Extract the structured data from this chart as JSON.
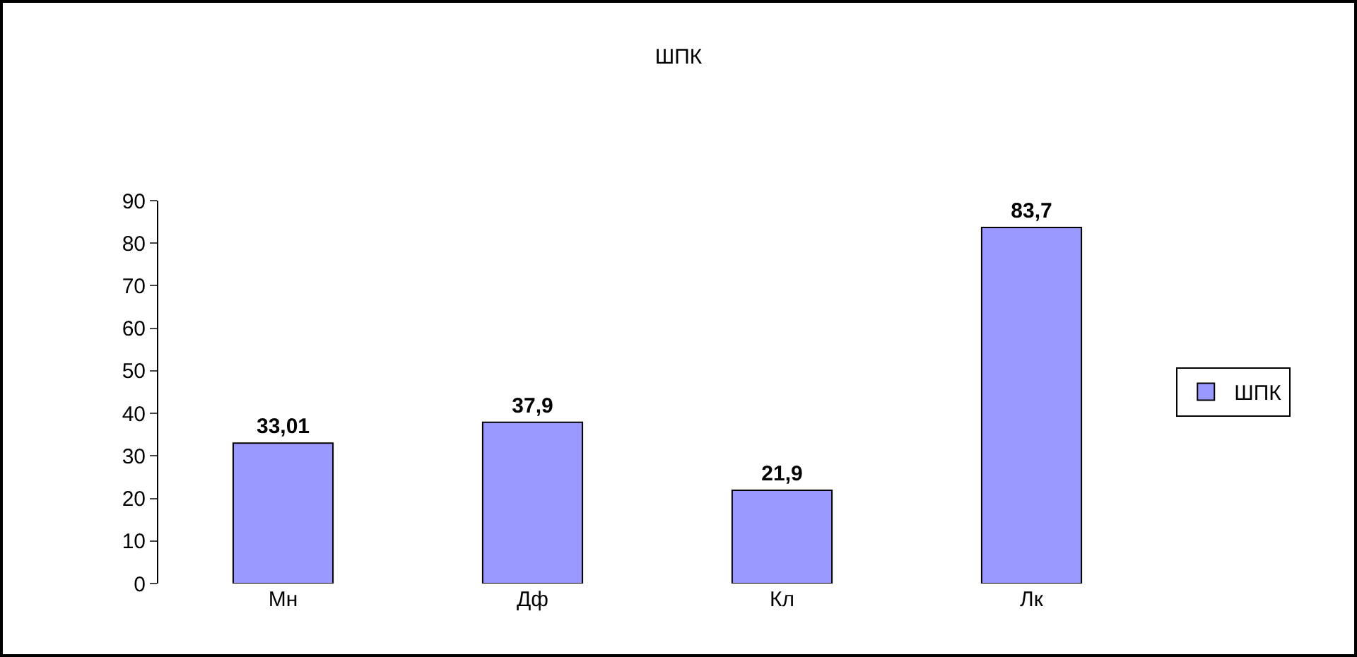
{
  "chart_data": {
    "type": "bar",
    "title": "ШПК",
    "categories": [
      "Мн",
      "Дф",
      "Кл",
      "Лк"
    ],
    "series": [
      {
        "name": "ШПК",
        "color": "#9999ff",
        "values": [
          33.01,
          37.9,
          21.9,
          83.7
        ]
      }
    ],
    "value_labels": [
      "33,01",
      "37,9",
      "21,9",
      "83,7"
    ],
    "ylim": [
      0,
      90
    ],
    "yticks": [
      0,
      10,
      20,
      30,
      40,
      50,
      60,
      70,
      80,
      90
    ],
    "grid": false,
    "legend": "right"
  }
}
